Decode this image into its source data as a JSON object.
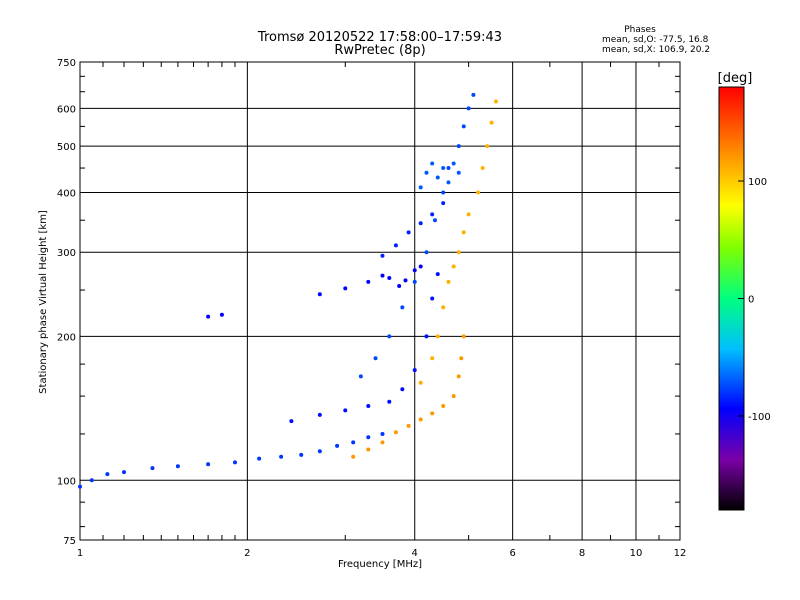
{
  "chart_data": {
    "type": "scatter",
    "title": "Tromsø 20120522 17:58:00–17:59:43",
    "subtitle": "RwPretec (8p)",
    "xlabel": "Frequency [MHz]",
    "ylabel": "Stationary phase Virtual Height [km]",
    "xscale": "log",
    "yscale": "log",
    "xlim": [
      1,
      12
    ],
    "ylim": [
      75,
      750
    ],
    "x_ticks": [
      1,
      2,
      4,
      6,
      8,
      10,
      12
    ],
    "y_ticks": [
      75,
      100,
      200,
      300,
      400,
      500,
      600,
      750
    ],
    "x_gridlines": [
      2,
      4,
      6,
      8,
      10
    ],
    "y_gridlines": [
      100,
      200,
      300,
      400,
      500,
      600
    ],
    "grid": true,
    "phases_legend": {
      "title": "Phases",
      "line1": "mean, sd,O: -77.5, 16.8",
      "line2": "mean, sd,X: 106.9, 20.2"
    },
    "colorbar": {
      "label": "[deg]",
      "range": [
        -180,
        180
      ],
      "ticks": [
        100,
        0,
        -100
      ],
      "tick_labels": [
        "100",
        "0",
        "-100"
      ]
    },
    "traces": [
      {
        "description": "O-mode low E/F1 trace",
        "phase_deg": -80,
        "points": [
          [
            1.0,
            97
          ],
          [
            1.05,
            100
          ],
          [
            1.12,
            103
          ],
          [
            1.2,
            104
          ],
          [
            1.35,
            106
          ],
          [
            1.5,
            107
          ],
          [
            1.7,
            108
          ],
          [
            1.9,
            109
          ],
          [
            2.1,
            111
          ],
          [
            2.3,
            112
          ],
          [
            2.5,
            113
          ],
          [
            2.7,
            115
          ],
          [
            2.9,
            118
          ],
          [
            3.1,
            120
          ],
          [
            3.3,
            123
          ],
          [
            3.5,
            125
          ]
        ]
      },
      {
        "description": "O-mode middle trace",
        "phase_deg": -90,
        "points": [
          [
            2.4,
            133
          ],
          [
            2.7,
            137
          ],
          [
            3.0,
            140
          ],
          [
            3.3,
            143
          ],
          [
            3.6,
            146
          ],
          [
            3.8,
            155
          ],
          [
            4.0,
            170
          ],
          [
            4.2,
            200
          ],
          [
            4.3,
            240
          ],
          [
            4.4,
            270
          ]
        ]
      },
      {
        "description": "O-mode F2 trace",
        "phase_deg": -75,
        "points": [
          [
            3.2,
            165
          ],
          [
            3.4,
            180
          ],
          [
            3.6,
            200
          ],
          [
            3.8,
            230
          ],
          [
            4.0,
            260
          ],
          [
            4.2,
            300
          ],
          [
            4.35,
            350
          ],
          [
            4.5,
            400
          ],
          [
            4.6,
            450
          ],
          [
            4.8,
            500
          ],
          [
            4.9,
            550
          ],
          [
            5.0,
            600
          ],
          [
            5.1,
            640
          ]
        ]
      },
      {
        "description": "O-mode oblique trace",
        "phase_deg": -95,
        "points": [
          [
            1.7,
            220
          ],
          [
            1.8,
            222
          ],
          [
            2.7,
            245
          ],
          [
            3.0,
            252
          ],
          [
            3.3,
            260
          ],
          [
            3.5,
            268
          ],
          [
            3.6,
            265
          ],
          [
            3.75,
            255
          ],
          [
            3.85,
            262
          ],
          [
            4.0,
            275
          ],
          [
            4.1,
            280
          ]
        ]
      },
      {
        "description": "O-mode upper oblique trace",
        "phase_deg": -85,
        "points": [
          [
            3.5,
            295
          ],
          [
            3.7,
            310
          ],
          [
            3.9,
            330
          ],
          [
            4.1,
            345
          ],
          [
            4.3,
            360
          ],
          [
            4.5,
            380
          ]
        ]
      },
      {
        "description": "O-mode cusp cluster",
        "phase_deg": -70,
        "points": [
          [
            4.1,
            410
          ],
          [
            4.2,
            440
          ],
          [
            4.3,
            460
          ],
          [
            4.4,
            430
          ],
          [
            4.5,
            450
          ],
          [
            4.6,
            420
          ],
          [
            4.7,
            460
          ],
          [
            4.8,
            440
          ]
        ]
      },
      {
        "description": "X-mode low trace",
        "phase_deg": 120,
        "points": [
          [
            3.1,
            112
          ],
          [
            3.3,
            116
          ],
          [
            3.5,
            120
          ],
          [
            3.7,
            126
          ],
          [
            3.9,
            130
          ],
          [
            4.1,
            134
          ],
          [
            4.3,
            138
          ],
          [
            4.5,
            143
          ],
          [
            4.7,
            150
          ],
          [
            4.8,
            165
          ],
          [
            4.85,
            180
          ],
          [
            4.9,
            200
          ]
        ]
      },
      {
        "description": "X-mode F2 trace",
        "phase_deg": 110,
        "points": [
          [
            4.1,
            160
          ],
          [
            4.3,
            180
          ],
          [
            4.4,
            200
          ],
          [
            4.5,
            230
          ],
          [
            4.6,
            260
          ],
          [
            4.7,
            280
          ],
          [
            4.8,
            300
          ],
          [
            4.9,
            330
          ],
          [
            5.0,
            360
          ],
          [
            5.2,
            400
          ],
          [
            5.3,
            450
          ],
          [
            5.4,
            500
          ],
          [
            5.5,
            560
          ],
          [
            5.6,
            620
          ]
        ]
      }
    ]
  }
}
